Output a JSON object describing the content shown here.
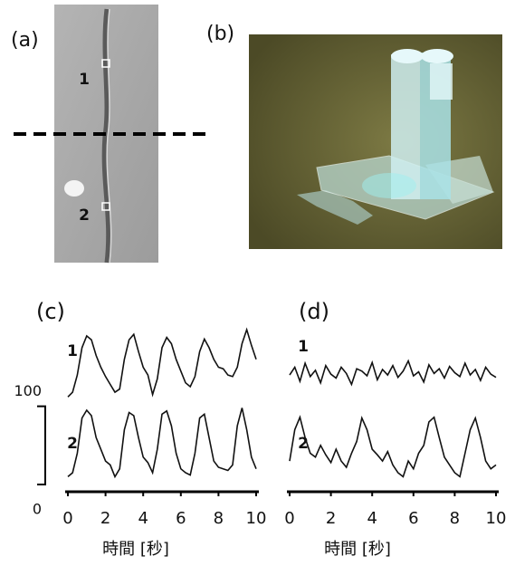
{
  "panels": {
    "a": {
      "label": "(a)",
      "points": [
        "1",
        "2"
      ]
    },
    "b": {
      "label": "(b)"
    }
  },
  "chart_data": [
    {
      "type": "line",
      "title": "(c)",
      "x_label": "時間 [秒]",
      "x": [
        0,
        0.25,
        0.5,
        0.75,
        1,
        1.25,
        1.5,
        1.75,
        2,
        2.25,
        2.5,
        2.75,
        3,
        3.25,
        3.5,
        3.75,
        4,
        4.25,
        4.5,
        4.75,
        5,
        5.25,
        5.5,
        5.75,
        6,
        6.25,
        6.5,
        6.75,
        7,
        7.25,
        7.5,
        7.75,
        8,
        8.25,
        8.5,
        8.75,
        9,
        9.25,
        9.5,
        9.75,
        10
      ],
      "xlim": [
        0,
        10
      ],
      "xticks": [
        0,
        2,
        4,
        6,
        8,
        10
      ],
      "ylim": [
        0,
        220
      ],
      "yticks": [
        0,
        100
      ],
      "series": [
        {
          "name": "1",
          "color": "#111111",
          "values": [
            112,
            118,
            140,
            175,
            190,
            185,
            165,
            150,
            138,
            128,
            118,
            122,
            160,
            185,
            192,
            170,
            150,
            140,
            115,
            135,
            175,
            188,
            180,
            160,
            145,
            130,
            125,
            138,
            170,
            186,
            175,
            160,
            150,
            148,
            140,
            138,
            150,
            180,
            198,
            178,
            160
          ]
        },
        {
          "name": "2",
          "color": "#111111",
          "values": [
            10,
            15,
            40,
            85,
            95,
            88,
            60,
            45,
            30,
            25,
            10,
            20,
            70,
            92,
            88,
            60,
            35,
            28,
            15,
            45,
            90,
            94,
            75,
            40,
            20,
            15,
            12,
            40,
            85,
            90,
            60,
            30,
            22,
            20,
            18,
            25,
            75,
            98,
            70,
            35,
            20
          ]
        }
      ]
    },
    {
      "type": "line",
      "title": "(d)",
      "x_label": "時間 [秒]",
      "x": [
        0,
        0.25,
        0.5,
        0.75,
        1,
        1.25,
        1.5,
        1.75,
        2,
        2.25,
        2.5,
        2.75,
        3,
        3.25,
        3.5,
        3.75,
        4,
        4.25,
        4.5,
        4.75,
        5,
        5.25,
        5.5,
        5.75,
        6,
        6.25,
        6.5,
        6.75,
        7,
        7.25,
        7.5,
        7.75,
        8,
        8.25,
        8.5,
        8.75,
        9,
        9.25,
        9.5,
        9.75,
        10
      ],
      "xlim": [
        0,
        10
      ],
      "xticks": [
        0,
        2,
        4,
        6,
        8,
        10
      ],
      "ylim": [
        0,
        220
      ],
      "series": [
        {
          "name": "1",
          "color": "#111111",
          "values": [
            140,
            150,
            132,
            155,
            138,
            146,
            130,
            152,
            141,
            136,
            150,
            142,
            128,
            148,
            145,
            139,
            156,
            134,
            147,
            140,
            152,
            137,
            145,
            158,
            139,
            144,
            131,
            153,
            142,
            148,
            136,
            151,
            143,
            138,
            155,
            140,
            147,
            133,
            150,
            141,
            137
          ]
        },
        {
          "name": "2",
          "color": "#111111",
          "values": [
            30,
            70,
            86,
            60,
            40,
            35,
            50,
            38,
            28,
            45,
            30,
            22,
            40,
            55,
            85,
            70,
            45,
            38,
            30,
            42,
            25,
            15,
            10,
            30,
            20,
            40,
            50,
            80,
            86,
            60,
            35,
            25,
            15,
            10,
            40,
            70,
            85,
            60,
            30,
            20,
            25
          ]
        }
      ]
    }
  ]
}
